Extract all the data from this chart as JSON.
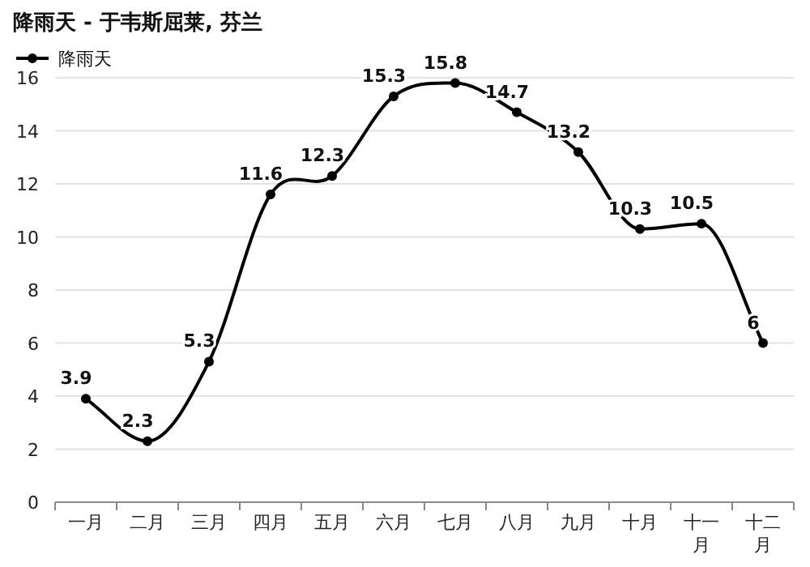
{
  "chart_data": {
    "type": "line",
    "title": "降雨天 - 于韦斯屈莱, 芬兰",
    "categories": [
      "一月",
      "二月",
      "三月",
      "四月",
      "五月",
      "六月",
      "七月",
      "八月",
      "九月",
      "十月",
      "十一月",
      "十二月"
    ],
    "series": [
      {
        "name": "降雨天",
        "color": "#000000",
        "values": [
          3.9,
          2.3,
          5.3,
          11.6,
          12.3,
          15.3,
          15.8,
          14.7,
          13.2,
          10.3,
          10.5,
          6
        ]
      }
    ],
    "ylim": [
      0,
      16
    ],
    "yticks": [
      0,
      2,
      4,
      6,
      8,
      10,
      12,
      14,
      16
    ],
    "grid": "y",
    "legend": "top left",
    "data_labels": true,
    "marker": "circle",
    "line_style": "solid"
  }
}
